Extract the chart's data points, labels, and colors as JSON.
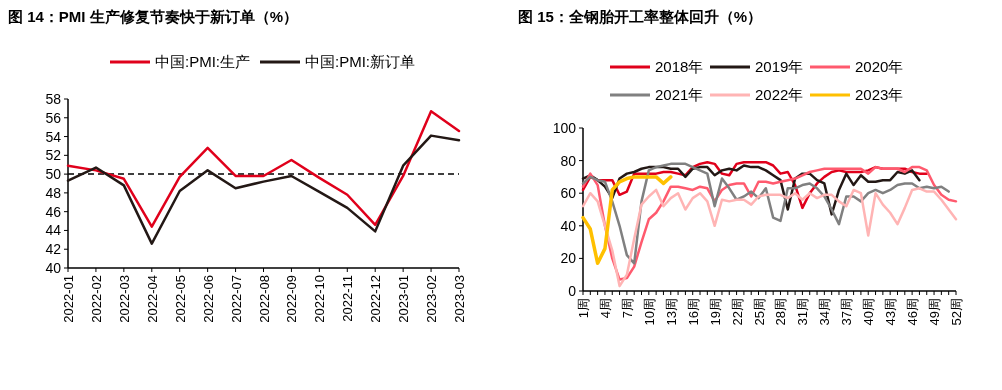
{
  "chart_data": [
    {
      "type": "line",
      "title": "图 14：PMI 生产修复节奏快于新订单（%）",
      "categories": [
        "2022-01",
        "2022-02",
        "2022-03",
        "2022-04",
        "2022-05",
        "2022-06",
        "2022-07",
        "2022-08",
        "2022-09",
        "2022-10",
        "2022-11",
        "2022-12",
        "2023-01",
        "2023-02",
        "2023-03"
      ],
      "series": [
        {
          "name": "中国:PMI:生产",
          "color": "#e0001b",
          "values": [
            50.9,
            50.4,
            49.5,
            44.4,
            49.7,
            52.8,
            49.8,
            49.8,
            51.5,
            49.6,
            47.8,
            44.6,
            49.8,
            56.7,
            54.6
          ]
        },
        {
          "name": "中国:PMI:新订单",
          "color": "#231815",
          "values": [
            49.3,
            50.7,
            48.8,
            42.6,
            48.2,
            50.4,
            48.5,
            49.2,
            49.8,
            48.1,
            46.4,
            43.9,
            50.9,
            54.1,
            53.6
          ]
        }
      ],
      "ylim": [
        40,
        58
      ],
      "yticks": [
        40,
        42,
        44,
        46,
        48,
        50,
        52,
        54,
        56,
        58
      ],
      "ref_lines": [
        {
          "axis": "y",
          "value": 50,
          "color": "#000000",
          "line_style": "dashed"
        }
      ],
      "legend": "top",
      "grid": false
    },
    {
      "type": "line",
      "title": "图 15：全钢胎开工率整体回升（%）",
      "categories": [
        "1周",
        null,
        null,
        "4周",
        null,
        null,
        "7周",
        null,
        null,
        "10周",
        null,
        null,
        "13周",
        null,
        null,
        "16周",
        null,
        null,
        "19周",
        null,
        null,
        "22周",
        null,
        null,
        "25周",
        null,
        null,
        "28周",
        null,
        null,
        "31周",
        null,
        null,
        "34周",
        null,
        null,
        "37周",
        null,
        null,
        "40周",
        null,
        null,
        "43周",
        null,
        null,
        "46周",
        null,
        null,
        "49周",
        null,
        null,
        "52周"
      ],
      "series": [
        {
          "name": "2018年",
          "color": "#e0001b",
          "values": [
            62,
            70,
            68,
            68,
            68,
            59,
            61,
            72,
            72,
            72,
            72,
            73,
            73,
            72,
            71,
            76,
            78,
            79,
            78,
            72,
            71,
            78,
            79,
            79,
            79,
            79,
            77,
            72,
            73,
            65,
            51,
            60,
            66,
            70,
            73,
            74,
            73,
            73,
            73,
            74,
            76,
            75,
            75,
            75,
            75,
            73,
            72,
            72,
            null,
            null,
            null,
            null
          ]
        },
        {
          "name": "2019年",
          "color": "#231815",
          "values": [
            69,
            71,
            68,
            64,
            57,
            69,
            72,
            73,
            75,
            76,
            76,
            76,
            75,
            75,
            70,
            75,
            76,
            76,
            71,
            74,
            75,
            74,
            77,
            76,
            76,
            74,
            71,
            68,
            50,
            69,
            72,
            72,
            68,
            66,
            47,
            62,
            72,
            65,
            71,
            67,
            67,
            68,
            68,
            73,
            72,
            74,
            68,
            null,
            null,
            null,
            null,
            null
          ]
        },
        {
          "name": "2020年",
          "color": "#ff5a6e",
          "values": [
            64,
            72,
            65,
            40,
            20,
            7,
            8,
            15,
            30,
            44,
            48,
            55,
            64,
            64,
            63,
            62,
            64,
            63,
            55,
            62,
            65,
            66,
            66,
            58,
            67,
            67,
            66,
            67,
            68,
            69,
            71,
            73,
            74,
            75,
            75,
            75,
            75,
            75,
            75,
            72,
            76,
            75,
            75,
            75,
            73,
            76,
            76,
            74,
            65,
            59,
            56,
            55
          ]
        },
        {
          "name": "2021年",
          "color": "#808080",
          "values": [
            66,
            70,
            68,
            67,
            55,
            40,
            22,
            17,
            55,
            74,
            76,
            77,
            78,
            78,
            78,
            76,
            74,
            72,
            52,
            69,
            63,
            56,
            58,
            61,
            57,
            63,
            45,
            43,
            63,
            63,
            65,
            66,
            63,
            58,
            50,
            41,
            58,
            58,
            55,
            60,
            62,
            60,
            62,
            65,
            66,
            66,
            63,
            64,
            63,
            64,
            61,
            null
          ]
        },
        {
          "name": "2022年",
          "color": "#ffb4b4",
          "values": [
            52,
            60,
            55,
            40,
            25,
            3,
            10,
            32,
            53,
            58,
            62,
            52,
            57,
            60,
            50,
            57,
            60,
            55,
            40,
            56,
            55,
            56,
            56,
            53,
            58,
            59,
            59,
            59,
            57,
            60,
            56,
            60,
            57,
            59,
            59,
            55,
            52,
            62,
            60,
            34,
            60,
            53,
            48,
            41,
            51,
            62,
            63,
            61,
            61,
            56,
            50,
            44
          ]
        },
        {
          "name": "2023年",
          "color": "#ffc000",
          "values": [
            45,
            38,
            17,
            26,
            62,
            67,
            69,
            70,
            70,
            70,
            70,
            66,
            70,
            null,
            null,
            null,
            null,
            null,
            null,
            null,
            null,
            null,
            null,
            null,
            null,
            null,
            null,
            null,
            null,
            null,
            null,
            null,
            null,
            null,
            null,
            null,
            null,
            null,
            null,
            null,
            null,
            null,
            null,
            null,
            null,
            null,
            null,
            null,
            null,
            null,
            null,
            null
          ]
        }
      ],
      "ylim": [
        0,
        100
      ],
      "yticks": [
        0,
        20,
        40,
        60,
        80,
        100
      ],
      "legend": "top",
      "grid": false
    }
  ]
}
